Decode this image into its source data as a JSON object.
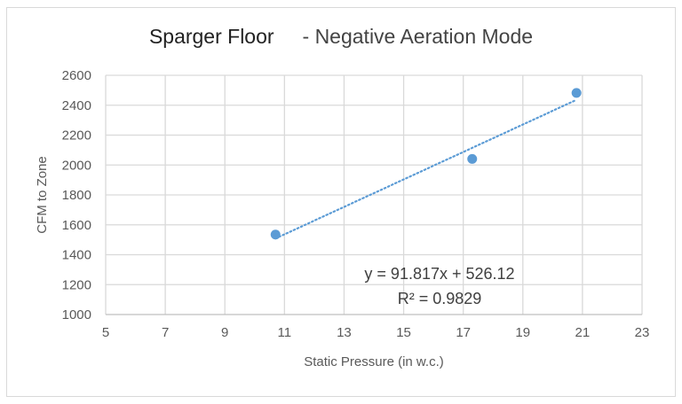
{
  "chart_data": {
    "type": "scatter",
    "title": "Sparger Floor",
    "subtitle": "- Negative Aeration Mode",
    "xlabel": "Static Pressure (in w.c.)",
    "ylabel": "CFM to Zone",
    "xlim": [
      5,
      23
    ],
    "ylim": [
      1000,
      2600
    ],
    "xticks": [
      5,
      7,
      9,
      11,
      13,
      15,
      17,
      19,
      21,
      23
    ],
    "yticks": [
      1000,
      1200,
      1400,
      1600,
      1800,
      2000,
      2200,
      2400,
      2600
    ],
    "grid": true,
    "series": [
      {
        "x": [
          10.7,
          17.3,
          20.8
        ],
        "y": [
          1535,
          2041,
          2482
        ],
        "color": "#5b9bd5"
      }
    ],
    "trendline": {
      "type": "linear",
      "slope": 91.817,
      "intercept": 526.12,
      "style": "dotted",
      "color": "#5b9bd5"
    },
    "annotations": [
      "y = 91.817x + 526.12",
      "R² = 0.9829"
    ]
  }
}
